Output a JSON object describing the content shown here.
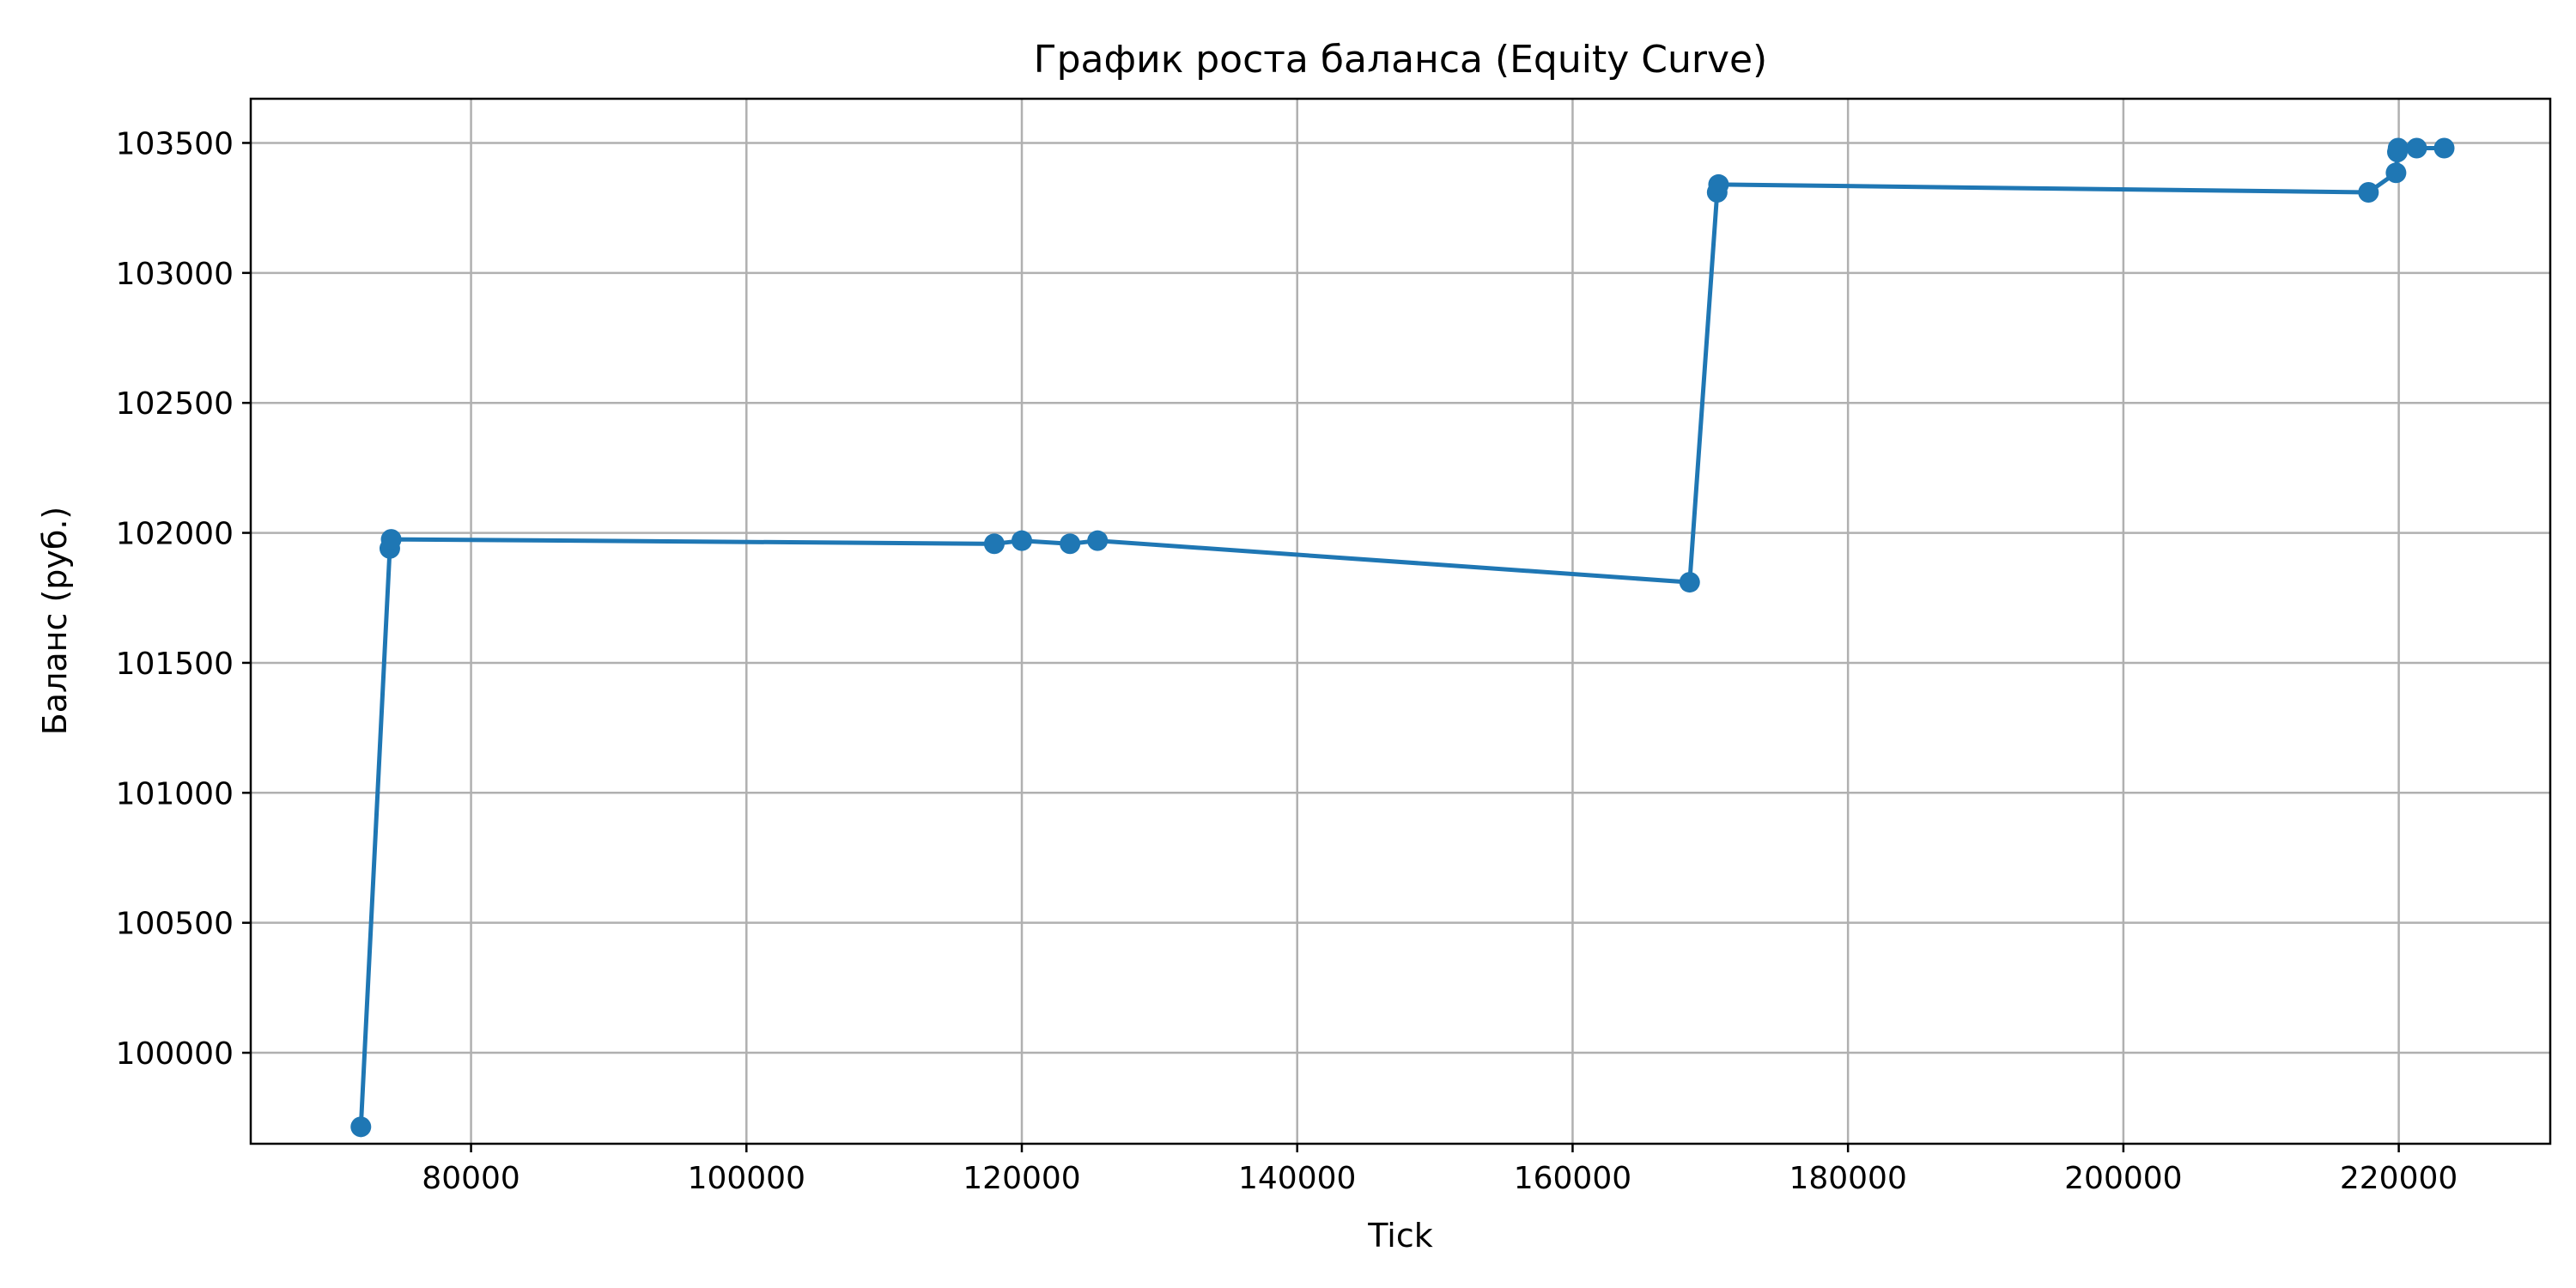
{
  "chart_data": {
    "type": "line",
    "title": "График роста баланса (Equity Curve)",
    "xlabel": "Tick",
    "ylabel": "Баланс (руб.)",
    "xlim": [
      64000,
      231000
    ],
    "ylim": [
      99650,
      103670
    ],
    "xticks": [
      80000,
      100000,
      120000,
      140000,
      160000,
      180000,
      200000,
      220000
    ],
    "yticks": [
      100000,
      100500,
      101000,
      101500,
      102000,
      102500,
      103000,
      103500
    ],
    "grid": true,
    "legend": "none",
    "series": [
      {
        "color": "#1f77b4",
        "marker": "circle",
        "points": [
          {
            "x": 72000,
            "y": 99715
          },
          {
            "x": 74100,
            "y": 101940
          },
          {
            "x": 74200,
            "y": 101975
          },
          {
            "x": 118000,
            "y": 101958
          },
          {
            "x": 120000,
            "y": 101970
          },
          {
            "x": 123500,
            "y": 101958
          },
          {
            "x": 125500,
            "y": 101970
          },
          {
            "x": 168500,
            "y": 101810
          },
          {
            "x": 170500,
            "y": 103310
          },
          {
            "x": 170600,
            "y": 103340
          },
          {
            "x": 217800,
            "y": 103310
          },
          {
            "x": 219800,
            "y": 103385
          },
          {
            "x": 219900,
            "y": 103465
          },
          {
            "x": 219950,
            "y": 103480
          },
          {
            "x": 221300,
            "y": 103480
          },
          {
            "x": 223300,
            "y": 103480
          }
        ]
      }
    ]
  }
}
